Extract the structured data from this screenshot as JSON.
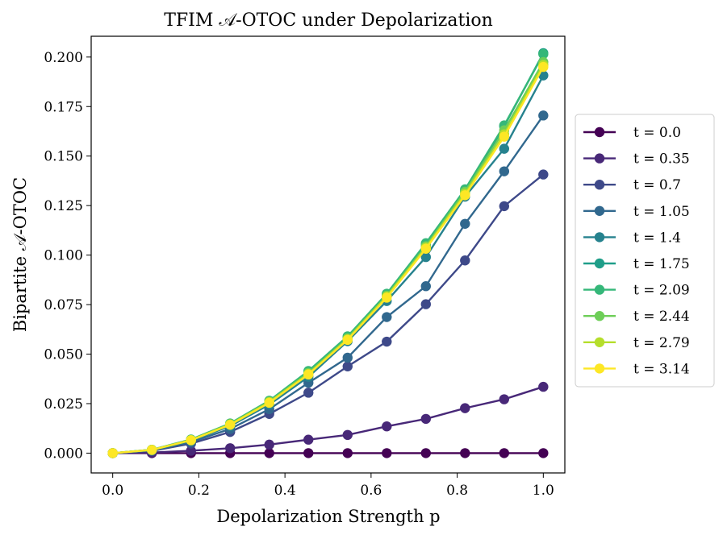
{
  "chart_data": {
    "type": "line",
    "title": "TFIM 𝒜-OTOC under Depolarization",
    "xlabel": "Depolarization Strength p",
    "ylabel": "Bipartite 𝒜-OTOC",
    "xlim": [
      -0.05,
      1.05
    ],
    "ylim": [
      -0.01,
      0.2105
    ],
    "xticks": [
      0.0,
      0.2,
      0.4,
      0.6,
      0.8,
      1.0
    ],
    "xtick_labels": [
      "0.0",
      "0.2",
      "0.4",
      "0.6",
      "0.8",
      "1.0"
    ],
    "yticks": [
      0.0,
      0.025,
      0.05,
      0.075,
      0.1,
      0.125,
      0.15,
      0.175,
      0.2
    ],
    "ytick_labels": [
      "0.000",
      "0.025",
      "0.050",
      "0.075",
      "0.100",
      "0.125",
      "0.150",
      "0.175",
      "0.200"
    ],
    "grid": false,
    "legend_position": "right-outside",
    "x": [
      0.0,
      0.0909,
      0.1818,
      0.2727,
      0.3636,
      0.4545,
      0.5455,
      0.6364,
      0.7273,
      0.8182,
      0.9091,
      1.0
    ],
    "series": [
      {
        "name": "t = 0.0",
        "color": "#440154",
        "values": [
          0.0,
          0.0,
          0.0,
          0.0,
          0.0,
          0.0,
          0.0,
          0.0,
          0.0,
          0.0,
          0.0,
          0.0
        ]
      },
      {
        "name": "t = 0.35",
        "color": "#482878",
        "values": [
          0.0,
          0.0003,
          0.0012,
          0.0025,
          0.0043,
          0.0068,
          0.0092,
          0.0135,
          0.0173,
          0.0227,
          0.0272,
          0.0335
        ]
      },
      {
        "name": "t = 0.7",
        "color": "#3e4989",
        "values": [
          0.0,
          0.0011,
          0.0048,
          0.0107,
          0.0198,
          0.0305,
          0.0438,
          0.0563,
          0.0752,
          0.0973,
          0.1247,
          0.1407
        ]
      },
      {
        "name": "t = 1.05",
        "color": "#31688e",
        "values": [
          0.0,
          0.0013,
          0.0056,
          0.0122,
          0.0222,
          0.0355,
          0.0482,
          0.0687,
          0.0843,
          0.1158,
          0.1423,
          0.1705
        ]
      },
      {
        "name": "t = 1.4",
        "color": "#26828e",
        "values": [
          0.0,
          0.0015,
          0.0062,
          0.0137,
          0.0245,
          0.0385,
          0.0565,
          0.0768,
          0.099,
          0.1295,
          0.1537,
          0.1907
        ]
      },
      {
        "name": "t = 1.75",
        "color": "#1f9e89",
        "values": [
          0.0,
          0.0017,
          0.0068,
          0.0148,
          0.0262,
          0.0412,
          0.0585,
          0.08,
          0.1055,
          0.1325,
          0.165,
          0.202
        ]
      },
      {
        "name": "t = 2.09",
        "color": "#35b779",
        "values": [
          0.0,
          0.0017,
          0.0069,
          0.015,
          0.0265,
          0.0415,
          0.059,
          0.0805,
          0.106,
          0.1332,
          0.1655,
          0.2015
        ]
      },
      {
        "name": "t = 2.44",
        "color": "#6ece58",
        "values": [
          0.0,
          0.0017,
          0.0067,
          0.0147,
          0.026,
          0.0405,
          0.058,
          0.0795,
          0.1045,
          0.132,
          0.163,
          0.1975
        ]
      },
      {
        "name": "t = 2.79",
        "color": "#b5de2b",
        "values": [
          0.0,
          0.0016,
          0.0066,
          0.0145,
          0.0257,
          0.04,
          0.0575,
          0.079,
          0.1038,
          0.131,
          0.161,
          0.196
        ]
      },
      {
        "name": "t = 3.14",
        "color": "#fde725",
        "values": [
          0.0,
          0.0016,
          0.0065,
          0.0143,
          0.0254,
          0.0397,
          0.0572,
          0.0785,
          0.1032,
          0.1302,
          0.1598,
          0.195
        ]
      }
    ]
  }
}
